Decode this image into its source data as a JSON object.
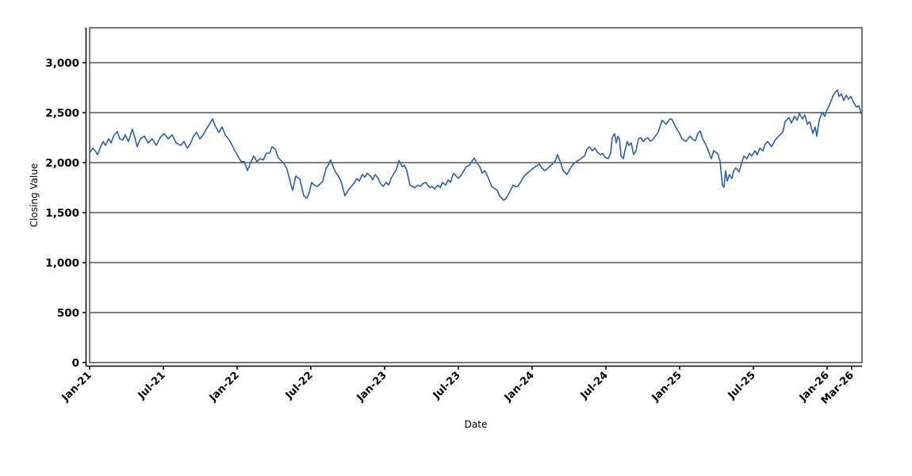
{
  "chart_data": {
    "type": "line",
    "title": "",
    "xlabel": "Date",
    "ylabel": "Closing Value",
    "background_color": "#ffffff",
    "plot_outline_color": "#444444",
    "gridline_color": "#000000",
    "grid": "horizontal-only",
    "legend": "none",
    "ylim": [
      0,
      3350
    ],
    "xlim_months_from_jan21": [
      0,
      62.84
    ],
    "y_ticks": [
      {
        "v": 0,
        "label": "0"
      },
      {
        "v": 500,
        "label": "500"
      },
      {
        "v": 1000,
        "label": "1,000"
      },
      {
        "v": 1500,
        "label": "1,500"
      },
      {
        "v": 2000,
        "label": "2,000"
      },
      {
        "v": 2500,
        "label": "2,500"
      },
      {
        "v": 3000,
        "label": "3,000"
      }
    ],
    "x_ticks": [
      {
        "m": 0,
        "label": "Jan-21"
      },
      {
        "m": 6,
        "label": "Jul-21"
      },
      {
        "m": 12,
        "label": "Jan-22"
      },
      {
        "m": 18,
        "label": "Jul-22"
      },
      {
        "m": 24,
        "label": "Jan-23"
      },
      {
        "m": 30,
        "label": "Jul-23"
      },
      {
        "m": 36,
        "label": "Jan-24"
      },
      {
        "m": 42,
        "label": "Jul-24"
      },
      {
        "m": 48,
        "label": "Jan-25"
      },
      {
        "m": 54,
        "label": "Jul-25"
      },
      {
        "m": 60,
        "label": "Jan-26"
      },
      {
        "m": 62,
        "label": "Mar-26"
      }
    ],
    "series": [
      {
        "name": "Closing Value",
        "color": "#2d5fa5",
        "points_format": "[months_since_Jan-2021, closing_value]",
        "points": [
          [
            0,
            2100
          ],
          [
            0.26,
            2145
          ],
          [
            0.45,
            2119
          ],
          [
            0.65,
            2079
          ],
          [
            0.9,
            2159
          ],
          [
            1.1,
            2212
          ],
          [
            1.29,
            2172
          ],
          [
            1.55,
            2238
          ],
          [
            1.74,
            2198
          ],
          [
            2.0,
            2278
          ],
          [
            2.26,
            2310
          ],
          [
            2.45,
            2238
          ],
          [
            2.71,
            2225
          ],
          [
            2.9,
            2278
          ],
          [
            3.16,
            2212
          ],
          [
            3.48,
            2336
          ],
          [
            3.68,
            2251
          ],
          [
            3.87,
            2159
          ],
          [
            4.13,
            2238
          ],
          [
            4.45,
            2265
          ],
          [
            4.77,
            2198
          ],
          [
            5.1,
            2238
          ],
          [
            5.42,
            2172
          ],
          [
            5.74,
            2251
          ],
          [
            6.06,
            2291
          ],
          [
            6.39,
            2238
          ],
          [
            6.71,
            2278
          ],
          [
            7.03,
            2198
          ],
          [
            7.42,
            2172
          ],
          [
            7.68,
            2212
          ],
          [
            7.94,
            2145
          ],
          [
            8.19,
            2185
          ],
          [
            8.45,
            2264
          ],
          [
            8.71,
            2304
          ],
          [
            8.97,
            2238
          ],
          [
            9.23,
            2278
          ],
          [
            9.48,
            2331
          ],
          [
            9.74,
            2383
          ],
          [
            10.0,
            2436
          ],
          [
            10.26,
            2357
          ],
          [
            10.52,
            2304
          ],
          [
            10.77,
            2357
          ],
          [
            11.03,
            2278
          ],
          [
            11.29,
            2238
          ],
          [
            11.55,
            2185
          ],
          [
            11.81,
            2119
          ],
          [
            12.06,
            2066
          ],
          [
            12.32,
            2013
          ],
          [
            12.58,
            2010
          ],
          [
            12.84,
            1921
          ],
          [
            13.1,
            2000
          ],
          [
            13.35,
            2066
          ],
          [
            13.61,
            2010
          ],
          [
            13.87,
            2040
          ],
          [
            14.13,
            2026
          ],
          [
            14.39,
            2095
          ],
          [
            14.65,
            2095
          ],
          [
            14.84,
            2159
          ],
          [
            15.1,
            2134
          ],
          [
            15.35,
            2050
          ],
          [
            15.61,
            2016
          ],
          [
            15.87,
            1980
          ],
          [
            16.06,
            1934
          ],
          [
            16.39,
            1776
          ],
          [
            16.52,
            1722
          ],
          [
            16.77,
            1865
          ],
          [
            17.1,
            1839
          ],
          [
            17.42,
            1669
          ],
          [
            17.68,
            1643
          ],
          [
            17.87,
            1700
          ],
          [
            18.06,
            1802
          ],
          [
            18.32,
            1770
          ],
          [
            18.52,
            1762
          ],
          [
            18.77,
            1790
          ],
          [
            18.97,
            1815
          ],
          [
            19.23,
            1940
          ],
          [
            19.42,
            1976
          ],
          [
            19.61,
            2026
          ],
          [
            19.81,
            1960
          ],
          [
            20.0,
            1907
          ],
          [
            20.26,
            1860
          ],
          [
            20.45,
            1815
          ],
          [
            20.77,
            1669
          ],
          [
            21.1,
            1735
          ],
          [
            21.29,
            1762
          ],
          [
            21.55,
            1802
          ],
          [
            21.74,
            1841
          ],
          [
            21.94,
            1815
          ],
          [
            22.19,
            1881
          ],
          [
            22.39,
            1855
          ],
          [
            22.58,
            1894
          ],
          [
            22.84,
            1868
          ],
          [
            23.03,
            1828
          ],
          [
            23.23,
            1881
          ],
          [
            23.48,
            1841
          ],
          [
            23.68,
            1789
          ],
          [
            23.87,
            1762
          ],
          [
            24.13,
            1802
          ],
          [
            24.32,
            1775
          ],
          [
            24.52,
            1841
          ],
          [
            24.77,
            1894
          ],
          [
            24.97,
            1934
          ],
          [
            25.16,
            2021
          ],
          [
            25.42,
            1960
          ],
          [
            25.61,
            1973
          ],
          [
            25.81,
            1920
          ],
          [
            26.06,
            1775
          ],
          [
            26.26,
            1762
          ],
          [
            26.45,
            1749
          ],
          [
            26.71,
            1775
          ],
          [
            26.9,
            1762
          ],
          [
            27.1,
            1789
          ],
          [
            27.35,
            1802
          ],
          [
            27.68,
            1749
          ],
          [
            27.87,
            1762
          ],
          [
            28.06,
            1735
          ],
          [
            28.32,
            1775
          ],
          [
            28.52,
            1749
          ],
          [
            28.71,
            1802
          ],
          [
            28.97,
            1775
          ],
          [
            29.16,
            1828
          ],
          [
            29.35,
            1802
          ],
          [
            29.61,
            1894
          ],
          [
            29.81,
            1868
          ],
          [
            30.0,
            1841
          ],
          [
            30.26,
            1881
          ],
          [
            30.45,
            1920
          ],
          [
            30.65,
            1960
          ],
          [
            30.9,
            1973
          ],
          [
            31.1,
            2013
          ],
          [
            31.29,
            2045
          ],
          [
            31.48,
            2000
          ],
          [
            31.74,
            1960
          ],
          [
            31.94,
            1894
          ],
          [
            32.13,
            1920
          ],
          [
            32.32,
            1881
          ],
          [
            32.52,
            1820
          ],
          [
            32.71,
            1762
          ],
          [
            32.97,
            1740
          ],
          [
            33.16,
            1722
          ],
          [
            33.35,
            1670
          ],
          [
            33.68,
            1625
          ],
          [
            33.87,
            1640
          ],
          [
            34.13,
            1696
          ],
          [
            34.45,
            1775
          ],
          [
            34.65,
            1760
          ],
          [
            34.84,
            1762
          ],
          [
            35.1,
            1810
          ],
          [
            35.29,
            1855
          ],
          [
            35.48,
            1880
          ],
          [
            35.74,
            1907
          ],
          [
            35.94,
            1930
          ],
          [
            36.13,
            1947
          ],
          [
            36.39,
            1970
          ],
          [
            36.58,
            1986
          ],
          [
            36.77,
            1950
          ],
          [
            37.03,
            1920
          ],
          [
            37.23,
            1940
          ],
          [
            37.42,
            1960
          ],
          [
            37.68,
            1990
          ],
          [
            37.87,
            2013
          ],
          [
            38.06,
            2080
          ],
          [
            38.32,
            2000
          ],
          [
            38.52,
            1921
          ],
          [
            38.84,
            1881
          ],
          [
            39.1,
            1940
          ],
          [
            39.35,
            1987
          ],
          [
            39.61,
            2010
          ],
          [
            39.81,
            2026
          ],
          [
            40.06,
            2050
          ],
          [
            40.26,
            2066
          ],
          [
            40.45,
            2132
          ],
          [
            40.65,
            2159
          ],
          [
            40.9,
            2119
          ],
          [
            41.1,
            2145
          ],
          [
            41.29,
            2106
          ],
          [
            41.55,
            2079
          ],
          [
            41.74,
            2093
          ],
          [
            41.94,
            2053
          ],
          [
            42.19,
            2040
          ],
          [
            42.39,
            2093
          ],
          [
            42.52,
            2251
          ],
          [
            42.71,
            2291
          ],
          [
            42.84,
            2198
          ],
          [
            42.97,
            2264
          ],
          [
            43.1,
            2238
          ],
          [
            43.23,
            2066
          ],
          [
            43.42,
            2040
          ],
          [
            43.55,
            2119
          ],
          [
            43.74,
            2212
          ],
          [
            43.87,
            2172
          ],
          [
            44.06,
            2198
          ],
          [
            44.26,
            2079
          ],
          [
            44.45,
            2119
          ],
          [
            44.65,
            2238
          ],
          [
            44.84,
            2251
          ],
          [
            45.03,
            2212
          ],
          [
            45.23,
            2238
          ],
          [
            45.42,
            2251
          ],
          [
            45.61,
            2215
          ],
          [
            45.81,
            2230
          ],
          [
            46.06,
            2270
          ],
          [
            46.26,
            2305
          ],
          [
            46.45,
            2380
          ],
          [
            46.58,
            2424
          ],
          [
            46.77,
            2400
          ],
          [
            46.9,
            2384
          ],
          [
            47.16,
            2430
          ],
          [
            47.35,
            2437
          ],
          [
            47.55,
            2390
          ],
          [
            47.74,
            2343
          ],
          [
            48.0,
            2290
          ],
          [
            48.19,
            2238
          ],
          [
            48.52,
            2212
          ],
          [
            48.84,
            2264
          ],
          [
            49.1,
            2230
          ],
          [
            49.29,
            2220
          ],
          [
            49.48,
            2291
          ],
          [
            49.68,
            2317
          ],
          [
            49.87,
            2238
          ],
          [
            50.06,
            2198
          ],
          [
            50.26,
            2145
          ],
          [
            50.45,
            2079
          ],
          [
            50.58,
            2040
          ],
          [
            50.77,
            2119
          ],
          [
            50.97,
            2100
          ],
          [
            51.1,
            2093
          ],
          [
            51.29,
            2013
          ],
          [
            51.48,
            1775
          ],
          [
            51.61,
            1754
          ],
          [
            51.74,
            1920
          ],
          [
            51.87,
            1815
          ],
          [
            52.06,
            1881
          ],
          [
            52.26,
            1841
          ],
          [
            52.39,
            1920
          ],
          [
            52.58,
            1947
          ],
          [
            52.84,
            1907
          ],
          [
            53.03,
            1987
          ],
          [
            53.23,
            2066
          ],
          [
            53.48,
            2040
          ],
          [
            53.68,
            2093
          ],
          [
            53.87,
            2066
          ],
          [
            54.13,
            2119
          ],
          [
            54.32,
            2079
          ],
          [
            54.52,
            2145
          ],
          [
            54.77,
            2119
          ],
          [
            54.97,
            2185
          ],
          [
            55.16,
            2212
          ],
          [
            55.48,
            2159
          ],
          [
            55.74,
            2220
          ],
          [
            55.94,
            2251
          ],
          [
            56.19,
            2280
          ],
          [
            56.39,
            2304
          ],
          [
            56.58,
            2410
          ],
          [
            56.9,
            2450
          ],
          [
            57.1,
            2397
          ],
          [
            57.35,
            2464
          ],
          [
            57.55,
            2424
          ],
          [
            57.74,
            2490
          ],
          [
            58.0,
            2437
          ],
          [
            58.19,
            2477
          ],
          [
            58.39,
            2384
          ],
          [
            58.58,
            2410
          ],
          [
            58.84,
            2291
          ],
          [
            59.03,
            2357
          ],
          [
            59.16,
            2264
          ],
          [
            59.35,
            2424
          ],
          [
            59.61,
            2503
          ],
          [
            59.81,
            2463
          ],
          [
            60.0,
            2530
          ],
          [
            60.26,
            2596
          ],
          [
            60.45,
            2662
          ],
          [
            60.65,
            2702
          ],
          [
            60.84,
            2728
          ],
          [
            60.97,
            2662
          ],
          [
            61.16,
            2688
          ],
          [
            61.35,
            2622
          ],
          [
            61.55,
            2675
          ],
          [
            61.74,
            2635
          ],
          [
            61.94,
            2662
          ],
          [
            62.13,
            2608
          ],
          [
            62.39,
            2556
          ],
          [
            62.58,
            2569
          ],
          [
            62.77,
            2490
          ]
        ]
      }
    ]
  }
}
